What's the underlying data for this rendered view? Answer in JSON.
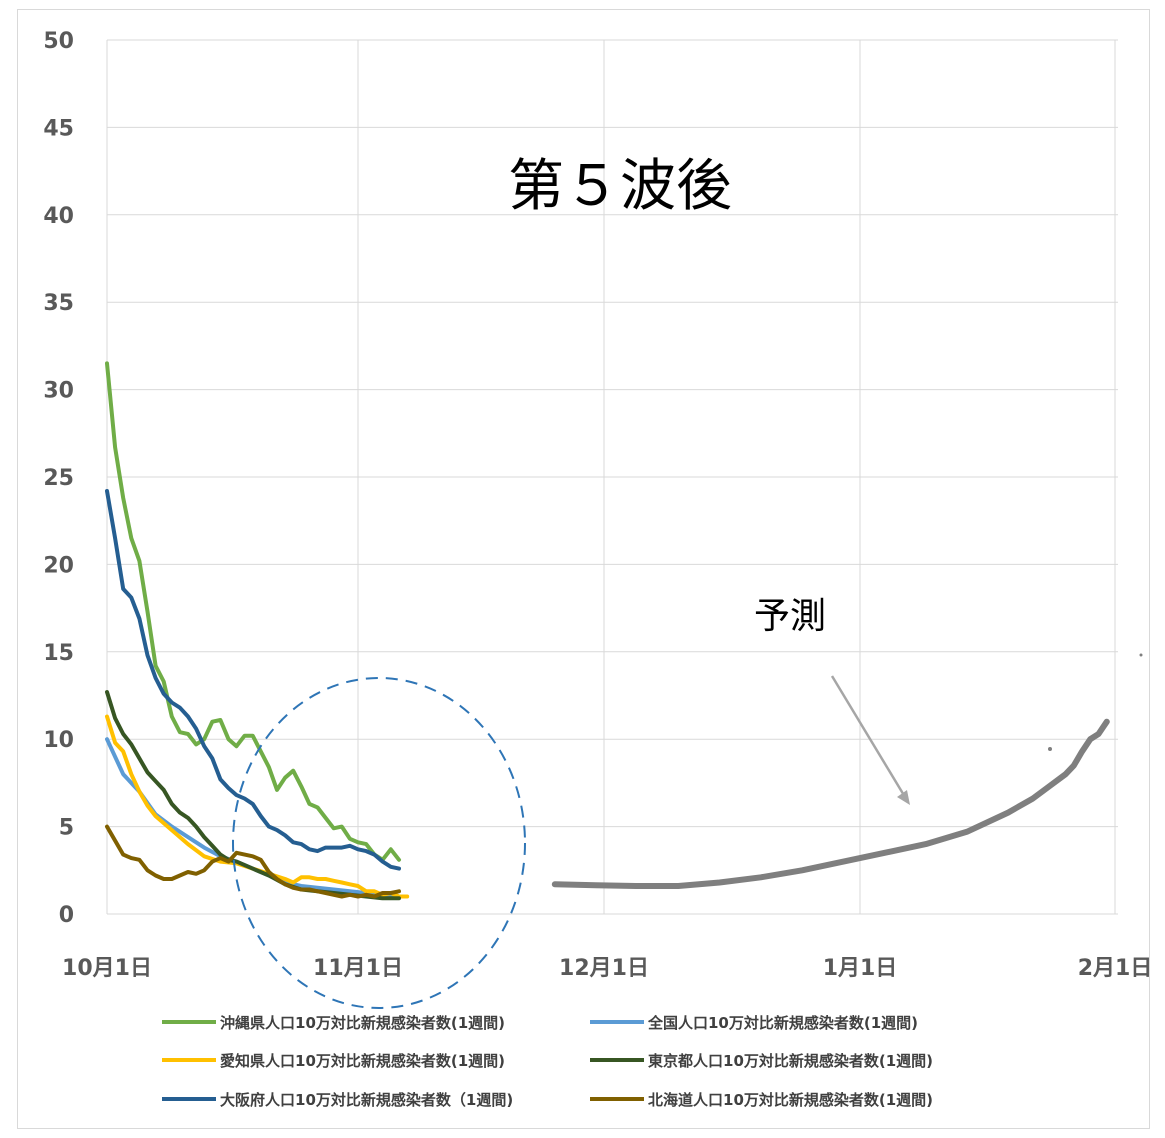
{
  "chart_data": {
    "type": "line",
    "title": "第５波後",
    "annotation": "予測",
    "ylim": [
      0,
      50
    ],
    "yticks": [
      "0",
      "5",
      "10",
      "15",
      "20",
      "25",
      "30",
      "35",
      "40",
      "45",
      "50"
    ],
    "xticks": [
      "10月1日",
      "11月1日",
      "12月1日",
      "1月1日",
      "2月1日"
    ],
    "x_unit": "days since 10月1日",
    "xlim": [
      0,
      123
    ],
    "grid": true,
    "legend_position": "bottom",
    "series": [
      {
        "name": "沖縄県人口10万対比新規感染者数(1週間)",
        "color": "#70ad47",
        "x": [
          0,
          1,
          2,
          3,
          4,
          5,
          6,
          7,
          8,
          9,
          10,
          11,
          12,
          13,
          14,
          15,
          16,
          17,
          18,
          19,
          20,
          21,
          22,
          23,
          24,
          25,
          26,
          27,
          28,
          29,
          30,
          31,
          32,
          33,
          34,
          35,
          36
        ],
        "y": [
          31.5,
          26.7,
          23.8,
          21.5,
          20.2,
          17.3,
          14.2,
          13.3,
          11.3,
          10.4,
          10.3,
          9.7,
          10.0,
          11.0,
          11.1,
          10.0,
          9.6,
          10.2,
          10.2,
          9.3,
          8.4,
          7.1,
          7.8,
          8.2,
          7.3,
          6.3,
          6.1,
          5.5,
          4.9,
          5.0,
          4.3,
          4.1,
          4.0,
          3.4,
          3.1,
          3.7,
          3.1
        ]
      },
      {
        "name": "全国人口10万対比新規感染者数(1週間)",
        "color": "#5b9bd5",
        "x": [
          0,
          2,
          4,
          6,
          8,
          10,
          12,
          14,
          16,
          18,
          20,
          22,
          24,
          26,
          28,
          30,
          32,
          34,
          36
        ],
        "y": [
          10.0,
          8.0,
          7.0,
          5.7,
          5.0,
          4.4,
          3.8,
          3.3,
          3.0,
          2.6,
          2.2,
          1.8,
          1.6,
          1.5,
          1.4,
          1.3,
          1.2,
          1.1,
          1.0
        ]
      },
      {
        "name": "愛知県人口10万対比新規感染者数(1週間)",
        "color": "#ffc000",
        "x": [
          0,
          1,
          2,
          3,
          4,
          5,
          6,
          8,
          10,
          12,
          14,
          16,
          18,
          20,
          22,
          23,
          24,
          25,
          26,
          27,
          28,
          29,
          30,
          31,
          32,
          33,
          34,
          35,
          36,
          37
        ],
        "y": [
          11.3,
          9.8,
          9.3,
          8.0,
          7.0,
          6.2,
          5.6,
          4.8,
          4.0,
          3.3,
          3.0,
          2.9,
          2.6,
          2.3,
          2.0,
          1.8,
          2.1,
          2.1,
          2.0,
          2.0,
          1.9,
          1.8,
          1.7,
          1.6,
          1.3,
          1.3,
          1.1,
          1.2,
          1.0,
          1.0
        ]
      },
      {
        "name": "東京都人口10万対比新規感染者数(1週間)",
        "color": "#375623",
        "x": [
          0,
          1,
          2,
          3,
          4,
          5,
          6,
          7,
          8,
          9,
          10,
          11,
          12,
          13,
          14,
          15,
          16,
          18,
          20,
          22,
          24,
          26,
          28,
          30,
          32,
          34,
          36
        ],
        "y": [
          12.7,
          11.2,
          10.3,
          9.7,
          8.9,
          8.1,
          7.6,
          7.1,
          6.3,
          5.8,
          5.5,
          5.0,
          4.4,
          3.9,
          3.4,
          3.1,
          3.0,
          2.6,
          2.2,
          1.7,
          1.4,
          1.3,
          1.2,
          1.1,
          1.0,
          0.9,
          0.9
        ]
      },
      {
        "name": "大阪府人口10万対比新規感染者数（1週間)",
        "color": "#255e91",
        "x": [
          0,
          1,
          2,
          3,
          4,
          5,
          6,
          7,
          8,
          9,
          10,
          11,
          12,
          13,
          14,
          15,
          16,
          17,
          18,
          19,
          20,
          21,
          22,
          23,
          24,
          25,
          26,
          27,
          28,
          29,
          30,
          31,
          32,
          33,
          34,
          35,
          36
        ],
        "y": [
          24.2,
          21.5,
          18.6,
          18.1,
          16.9,
          14.8,
          13.5,
          12.6,
          12.1,
          11.8,
          11.3,
          10.6,
          9.6,
          8.9,
          7.7,
          7.2,
          6.8,
          6.6,
          6.3,
          5.6,
          5.0,
          4.8,
          4.5,
          4.1,
          4.0,
          3.7,
          3.6,
          3.8,
          3.8,
          3.8,
          3.9,
          3.7,
          3.6,
          3.4,
          3.0,
          2.7,
          2.6
        ]
      },
      {
        "name": "北海道人口10万対比新規感染者数(1週間)",
        "color": "#806000",
        "x": [
          0,
          1,
          2,
          3,
          4,
          5,
          6,
          7,
          8,
          9,
          10,
          11,
          12,
          13,
          14,
          15,
          16,
          17,
          18,
          19,
          20,
          21,
          22,
          23,
          24,
          25,
          26,
          27,
          28,
          29,
          30,
          31,
          32,
          33,
          34,
          35,
          36
        ],
        "y": [
          5.0,
          4.2,
          3.4,
          3.2,
          3.1,
          2.5,
          2.2,
          2.0,
          2.0,
          2.2,
          2.4,
          2.3,
          2.5,
          3.0,
          3.2,
          3.0,
          3.5,
          3.4,
          3.3,
          3.1,
          2.4,
          2.0,
          1.7,
          1.5,
          1.4,
          1.4,
          1.3,
          1.2,
          1.1,
          1.0,
          1.1,
          1.0,
          1.1,
          1.0,
          1.2,
          1.2,
          1.3
        ]
      },
      {
        "name": "予測",
        "color": "#7f7f7f",
        "x": [
          55,
          60,
          65,
          70,
          75,
          80,
          85,
          90,
          95,
          100,
          105,
          110,
          113,
          115,
          117,
          118,
          119,
          120,
          121,
          122
        ],
        "y": [
          1.7,
          1.65,
          1.6,
          1.6,
          1.8,
          2.1,
          2.5,
          3.0,
          3.5,
          4.0,
          4.7,
          5.8,
          6.6,
          7.3,
          8.0,
          8.5,
          9.3,
          10.0,
          10.3,
          11.0
        ]
      }
    ]
  },
  "legend": {
    "items": [
      {
        "label": "沖縄県人口10万対比新規感染者数(1週間)",
        "color": "#70ad47"
      },
      {
        "label": "全国人口10万対比新規感染者数(1週間)",
        "color": "#5b9bd5"
      },
      {
        "label": "愛知県人口10万対比新規感染者数(1週間)",
        "color": "#ffc000"
      },
      {
        "label": "東京都人口10万対比新規感染者数(1週間)",
        "color": "#375623"
      },
      {
        "label": "大阪府人口10万対比新規感染者数（1週間)",
        "color": "#255e91"
      },
      {
        "label": "北海道人口10万対比新規感染者数(1週間)",
        "color": "#806000"
      }
    ]
  },
  "colors": {
    "grid": "#d9d9d9",
    "circle": "#2e75b6",
    "arrow": "#a6a6a6"
  }
}
